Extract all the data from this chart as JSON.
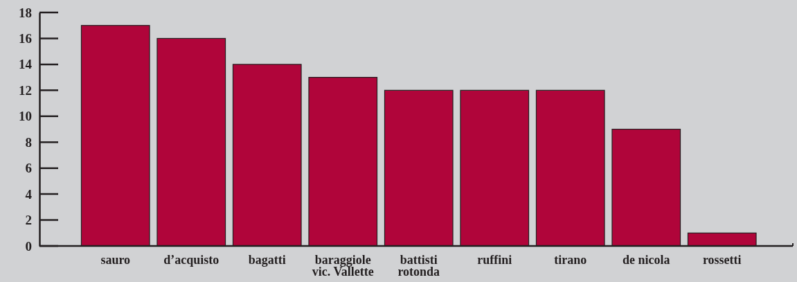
{
  "chart_data": {
    "type": "bar",
    "categories": [
      "sauro",
      "d’acquisto",
      "bagatti",
      "baraggiole\nvic. Vallette",
      "battisti\nrotonda",
      "ruffini",
      "tirano",
      "de nicola",
      "rossetti"
    ],
    "values": [
      17,
      16,
      14,
      13,
      12,
      12,
      12,
      9,
      1
    ],
    "color": "#b0053a",
    "ylim": [
      0,
      18
    ],
    "yticks": [
      0,
      2,
      4,
      6,
      8,
      10,
      12,
      14,
      16,
      18
    ],
    "grid": false
  }
}
